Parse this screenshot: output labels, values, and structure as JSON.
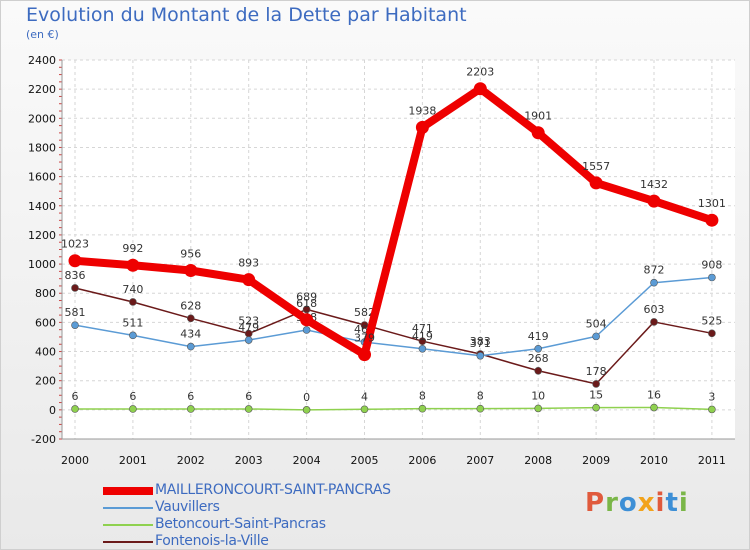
{
  "chart_data": {
    "type": "line",
    "title": "Evolution du Montant de la Dette par Habitant",
    "subtitle": "(en €)",
    "categories": [
      "2000",
      "2001",
      "2002",
      "2003",
      "2004",
      "2005",
      "2006",
      "2007",
      "2008",
      "2009",
      "2010",
      "2011"
    ],
    "ylim": [
      -200,
      2400
    ],
    "yticks": [
      -200,
      0,
      200,
      400,
      600,
      800,
      1000,
      1200,
      1400,
      1600,
      1800,
      2000,
      2200,
      2400
    ],
    "series": [
      {
        "name": "Fontenois-la-Ville",
        "color": "#6b1a1a",
        "values": [
          836,
          740,
          628,
          523,
          689,
          582,
          471,
          383,
          268,
          178,
          603,
          525
        ]
      },
      {
        "name": "Betoncourt-Saint-Pancras",
        "color": "#8fd14f",
        "values": [
          6,
          6,
          6,
          6,
          0,
          4,
          8,
          8,
          10,
          15,
          16,
          3
        ]
      },
      {
        "name": "Vauvillers",
        "color": "#5b9bd5",
        "values": [
          581,
          511,
          434,
          479,
          548,
          465,
          419,
          371,
          419,
          504,
          872,
          908
        ]
      },
      {
        "name": "MAILLERONCOURT-SAINT-PANCRAS",
        "color": "#ee0000",
        "values": [
          1023,
          992,
          956,
          893,
          618,
          379,
          1938,
          2203,
          1901,
          1557,
          1432,
          1301
        ]
      }
    ],
    "legend": [
      "MAILLERONCOURT-SAINT-PANCRAS",
      "Vauvillers",
      "Betoncourt-Saint-Pancras",
      "Fontenois-la-Ville"
    ]
  },
  "logo": {
    "text": "Proxiti",
    "colors": [
      "#e05a3c",
      "#7ab648",
      "#3d8fd6",
      "#f2a31b",
      "#e05a3c",
      "#3d8fd6",
      "#7ab648"
    ]
  }
}
